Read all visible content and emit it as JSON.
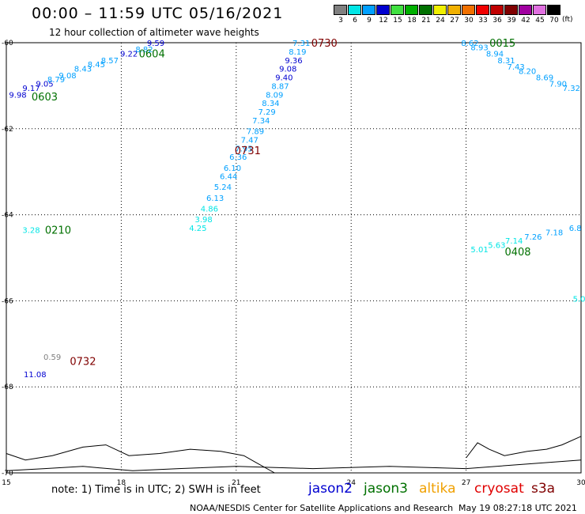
{
  "header": {
    "title": "00:00 – 11:59 UTC 05/16/2021",
    "subtitle": "12 hour collection of altimeter wave heights",
    "unit": "(ft)"
  },
  "colorbar": [
    {
      "label": "3",
      "color": "#808080"
    },
    {
      "label": "6",
      "color": "#00e5e5"
    },
    {
      "label": "9",
      "color": "#00a0ff"
    },
    {
      "label": "12",
      "color": "#0000d0"
    },
    {
      "label": "15",
      "color": "#40e040"
    },
    {
      "label": "18",
      "color": "#00b000"
    },
    {
      "label": "21",
      "color": "#007000"
    },
    {
      "label": "24",
      "color": "#f0f000"
    },
    {
      "label": "27",
      "color": "#f0b000"
    },
    {
      "label": "30",
      "color": "#f07000"
    },
    {
      "label": "33",
      "color": "#f00000"
    },
    {
      "label": "36",
      "color": "#c00000"
    },
    {
      "label": "39",
      "color": "#800000"
    },
    {
      "label": "42",
      "color": "#a000a0"
    },
    {
      "label": "45",
      "color": "#e070e0"
    },
    {
      "label": "70",
      "color": "#000000"
    }
  ],
  "chart_data": {
    "type": "scatter",
    "title": "00:00 – 11:59 UTC 05/16/2021",
    "subtitle": "12 hour collection of altimeter wave heights",
    "xlim": [
      15,
      30
    ],
    "ylim": [
      -70,
      -60
    ],
    "x_ticks": [
      "15",
      "18",
      "21",
      "24",
      "27",
      "30"
    ],
    "y_ticks": [
      "-60",
      "-62",
      "-64",
      "-66",
      "-68",
      "-70"
    ],
    "grid": true,
    "points": [
      {
        "lon": 15.3,
        "lat": -61.2,
        "value": "9.98",
        "color": "#0000d0"
      },
      {
        "lon": 15.65,
        "lat": -61.05,
        "value": "9.17",
        "color": "#0000d0"
      },
      {
        "lon": 16.0,
        "lat": -60.95,
        "value": "9.05",
        "color": "#0000d0"
      },
      {
        "lon": 16.3,
        "lat": -60.85,
        "value": "8.79",
        "color": "#00a0ff"
      },
      {
        "lon": 16.6,
        "lat": -60.75,
        "value": "9.08",
        "color": "#00a0ff"
      },
      {
        "lon": 17.0,
        "lat": -60.6,
        "value": "8.43",
        "color": "#00a0ff"
      },
      {
        "lon": 17.35,
        "lat": -60.5,
        "value": "8.45",
        "color": "#00a0ff"
      },
      {
        "lon": 17.7,
        "lat": -60.4,
        "value": "8.57",
        "color": "#00a0ff"
      },
      {
        "lon": 18.2,
        "lat": -60.25,
        "value": "9.22",
        "color": "#0000d0"
      },
      {
        "lon": 18.6,
        "lat": -60.15,
        "value": "8.82",
        "color": "#00a0ff"
      },
      {
        "lon": 18.9,
        "lat": -60.0,
        "value": "9.59",
        "color": "#0000d0"
      },
      {
        "lon": 22.7,
        "lat": -60.0,
        "value": "7.31",
        "color": "#00a0ff"
      },
      {
        "lon": 22.6,
        "lat": -60.2,
        "value": "8.19",
        "color": "#00a0ff"
      },
      {
        "lon": 22.5,
        "lat": -60.4,
        "value": "9.36",
        "color": "#0000d0"
      },
      {
        "lon": 22.35,
        "lat": -60.6,
        "value": "9.08",
        "color": "#0000d0"
      },
      {
        "lon": 22.25,
        "lat": -60.8,
        "value": "9.40",
        "color": "#0000d0"
      },
      {
        "lon": 22.15,
        "lat": -61.0,
        "value": "8.87",
        "color": "#00a0ff"
      },
      {
        "lon": 22.0,
        "lat": -61.2,
        "value": "8.09",
        "color": "#00a0ff"
      },
      {
        "lon": 21.9,
        "lat": -61.4,
        "value": "8.34",
        "color": "#00a0ff"
      },
      {
        "lon": 21.8,
        "lat": -61.6,
        "value": "7.29",
        "color": "#00a0ff"
      },
      {
        "lon": 21.65,
        "lat": -61.8,
        "value": "7.34",
        "color": "#00a0ff"
      },
      {
        "lon": 21.5,
        "lat": -62.05,
        "value": "7.89",
        "color": "#00a0ff"
      },
      {
        "lon": 21.35,
        "lat": -62.25,
        "value": "7.47",
        "color": "#00a0ff"
      },
      {
        "lon": 21.2,
        "lat": -62.45,
        "value": "7.95",
        "color": "#00a0ff"
      },
      {
        "lon": 21.05,
        "lat": -62.65,
        "value": "6.36",
        "color": "#00a0ff"
      },
      {
        "lon": 20.9,
        "lat": -62.9,
        "value": "6.10",
        "color": "#00a0ff"
      },
      {
        "lon": 20.8,
        "lat": -63.1,
        "value": "6.44",
        "color": "#00a0ff"
      },
      {
        "lon": 20.65,
        "lat": -63.35,
        "value": "5.24",
        "color": "#00a0ff"
      },
      {
        "lon": 20.45,
        "lat": -63.6,
        "value": "6.13",
        "color": "#00a0ff"
      },
      {
        "lon": 20.3,
        "lat": -63.85,
        "value": "4.86",
        "color": "#00e5e5"
      },
      {
        "lon": 20.15,
        "lat": -64.1,
        "value": "3.98",
        "color": "#00e5e5"
      },
      {
        "lon": 20.0,
        "lat": -64.3,
        "value": "4.25",
        "color": "#00e5e5"
      },
      {
        "lon": 15.65,
        "lat": -64.35,
        "value": "3.28",
        "color": "#00e5e5"
      },
      {
        "lon": 16.2,
        "lat": -67.3,
        "value": "0.59",
        "color": "#808080"
      },
      {
        "lon": 15.75,
        "lat": -67.7,
        "value": "11.08",
        "color": "#0000d0"
      },
      {
        "lon": 27.1,
        "lat": -60.0,
        "value": "8.62",
        "color": "#00a0ff"
      },
      {
        "lon": 27.35,
        "lat": -60.1,
        "value": "8.93",
        "color": "#00a0ff"
      },
      {
        "lon": 27.75,
        "lat": -60.25,
        "value": "8.94",
        "color": "#00a0ff"
      },
      {
        "lon": 28.05,
        "lat": -60.4,
        "value": "8.31",
        "color": "#00a0ff"
      },
      {
        "lon": 28.3,
        "lat": -60.55,
        "value": "7.43",
        "color": "#00a0ff"
      },
      {
        "lon": 28.6,
        "lat": -60.65,
        "value": "8.20",
        "color": "#00a0ff"
      },
      {
        "lon": 29.05,
        "lat": -60.8,
        "value": "8.69",
        "color": "#00a0ff"
      },
      {
        "lon": 29.4,
        "lat": -60.95,
        "value": "7.90",
        "color": "#00a0ff"
      },
      {
        "lon": 29.75,
        "lat": -61.05,
        "value": "7.32",
        "color": "#00a0ff"
      },
      {
        "lon": 27.35,
        "lat": -64.8,
        "value": "5.01",
        "color": "#00e5e5"
      },
      {
        "lon": 27.8,
        "lat": -64.7,
        "value": "5.63",
        "color": "#00e5e5"
      },
      {
        "lon": 28.25,
        "lat": -64.6,
        "value": "7.14",
        "color": "#00e5e5"
      },
      {
        "lon": 28.75,
        "lat": -64.5,
        "value": "7.26",
        "color": "#00a0ff"
      },
      {
        "lon": 29.3,
        "lat": -64.4,
        "value": "7.18",
        "color": "#00a0ff"
      },
      {
        "lon": 29.85,
        "lat": -64.3,
        "value": "6.8",
        "color": "#00a0ff"
      },
      {
        "lon": 29.95,
        "lat": -65.95,
        "value": "5.0",
        "color": "#00e5e5"
      }
    ],
    "time_labels": [
      {
        "lon": 16.0,
        "lat": -61.25,
        "value": "0603",
        "color": "#007000"
      },
      {
        "lon": 18.8,
        "lat": -60.25,
        "value": "0604",
        "color": "#007000"
      },
      {
        "lon": 23.3,
        "lat": -60.0,
        "value": "0730",
        "color": "#800000"
      },
      {
        "lon": 21.3,
        "lat": -62.5,
        "value": "0731",
        "color": "#800000"
      },
      {
        "lon": 16.35,
        "lat": -64.35,
        "value": "0210",
        "color": "#007000"
      },
      {
        "lon": 17.0,
        "lat": -67.4,
        "value": "0732",
        "color": "#800000"
      },
      {
        "lon": 27.95,
        "lat": -60.0,
        "value": "0015",
        "color": "#007000"
      },
      {
        "lon": 28.35,
        "lat": -64.85,
        "value": "0408",
        "color": "#007000"
      }
    ]
  },
  "footer": {
    "note": "note:  1)  Time is in UTC;  2)  SWH is in feet",
    "legend": [
      {
        "label": "jason2",
        "color": "#0000d0"
      },
      {
        "label": "jason3",
        "color": "#007000"
      },
      {
        "label": "altika",
        "color": "#f0a000"
      },
      {
        "label": "cryosat",
        "color": "#e00000"
      },
      {
        "label": "s3a",
        "color": "#800000"
      }
    ],
    "credit": "NOAA/NESDIS Center for Satellite Applications and Research",
    "timestamp": "May 19 08:27:18 UTC 2021"
  }
}
